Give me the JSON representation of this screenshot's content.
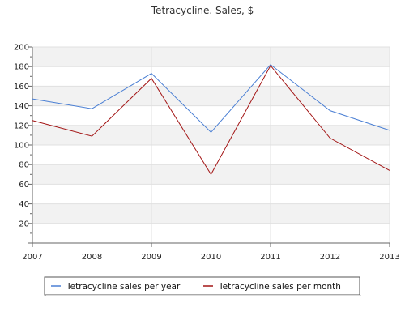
{
  "chart_data": {
    "type": "line",
    "title": "Tetracycline. Sales, $",
    "xlabel": "",
    "ylabel": "",
    "x": [
      "2007",
      "2008",
      "2009",
      "2010",
      "2011",
      "2012",
      "2013"
    ],
    "ylim": [
      0,
      200
    ],
    "yticks": [
      20,
      40,
      60,
      80,
      100,
      120,
      140,
      160,
      180,
      200
    ],
    "grid": "alternating horizontal bands",
    "legend_position": "bottom",
    "series": [
      {
        "name": "Tetracycline sales per year",
        "color": "#4a7fd4",
        "values": [
          147,
          137,
          173,
          113,
          182,
          135,
          115
        ]
      },
      {
        "name": "Tetracycline sales per month",
        "color": "#a31515",
        "values": [
          125,
          109,
          168,
          70,
          181,
          107,
          74
        ]
      }
    ]
  },
  "colors": {
    "band": "#f2f2f2",
    "gridline": "#e0e0e0",
    "axis": "#666666"
  }
}
